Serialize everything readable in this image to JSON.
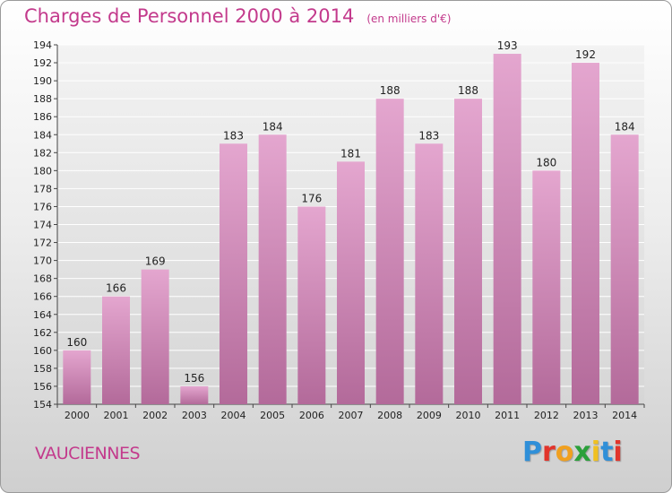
{
  "header": {
    "title": "Charges de Personnel 2000 à 2014",
    "subtitle": "(en milliers d'€)"
  },
  "footer": {
    "commune": "VAUCIENNES",
    "logo_letters": [
      "P",
      "r",
      "o",
      "x",
      "i",
      "t",
      "i"
    ],
    "logo_colors": [
      "#2f8fd8",
      "#e2342b",
      "#f0a020",
      "#2aa03a",
      "#f0c020",
      "#2f8fd8",
      "#e2342b"
    ]
  },
  "chart_data": {
    "type": "bar",
    "title": "Charges de Personnel 2000 à 2014",
    "subtitle": "(en milliers d'€)",
    "categories": [
      "2000",
      "2001",
      "2002",
      "2003",
      "2004",
      "2005",
      "2006",
      "2007",
      "2008",
      "2009",
      "2010",
      "2011",
      "2012",
      "2013",
      "2014"
    ],
    "values": [
      160,
      166,
      169,
      156,
      183,
      184,
      176,
      181,
      188,
      183,
      188,
      193,
      180,
      192,
      184
    ],
    "ylim": [
      154,
      194
    ],
    "yticks": [
      154,
      156,
      158,
      160,
      162,
      164,
      166,
      168,
      170,
      172,
      174,
      176,
      178,
      180,
      182,
      184,
      186,
      188,
      190,
      192,
      194
    ],
    "grid": true,
    "bar_color": "#d98fbf"
  }
}
